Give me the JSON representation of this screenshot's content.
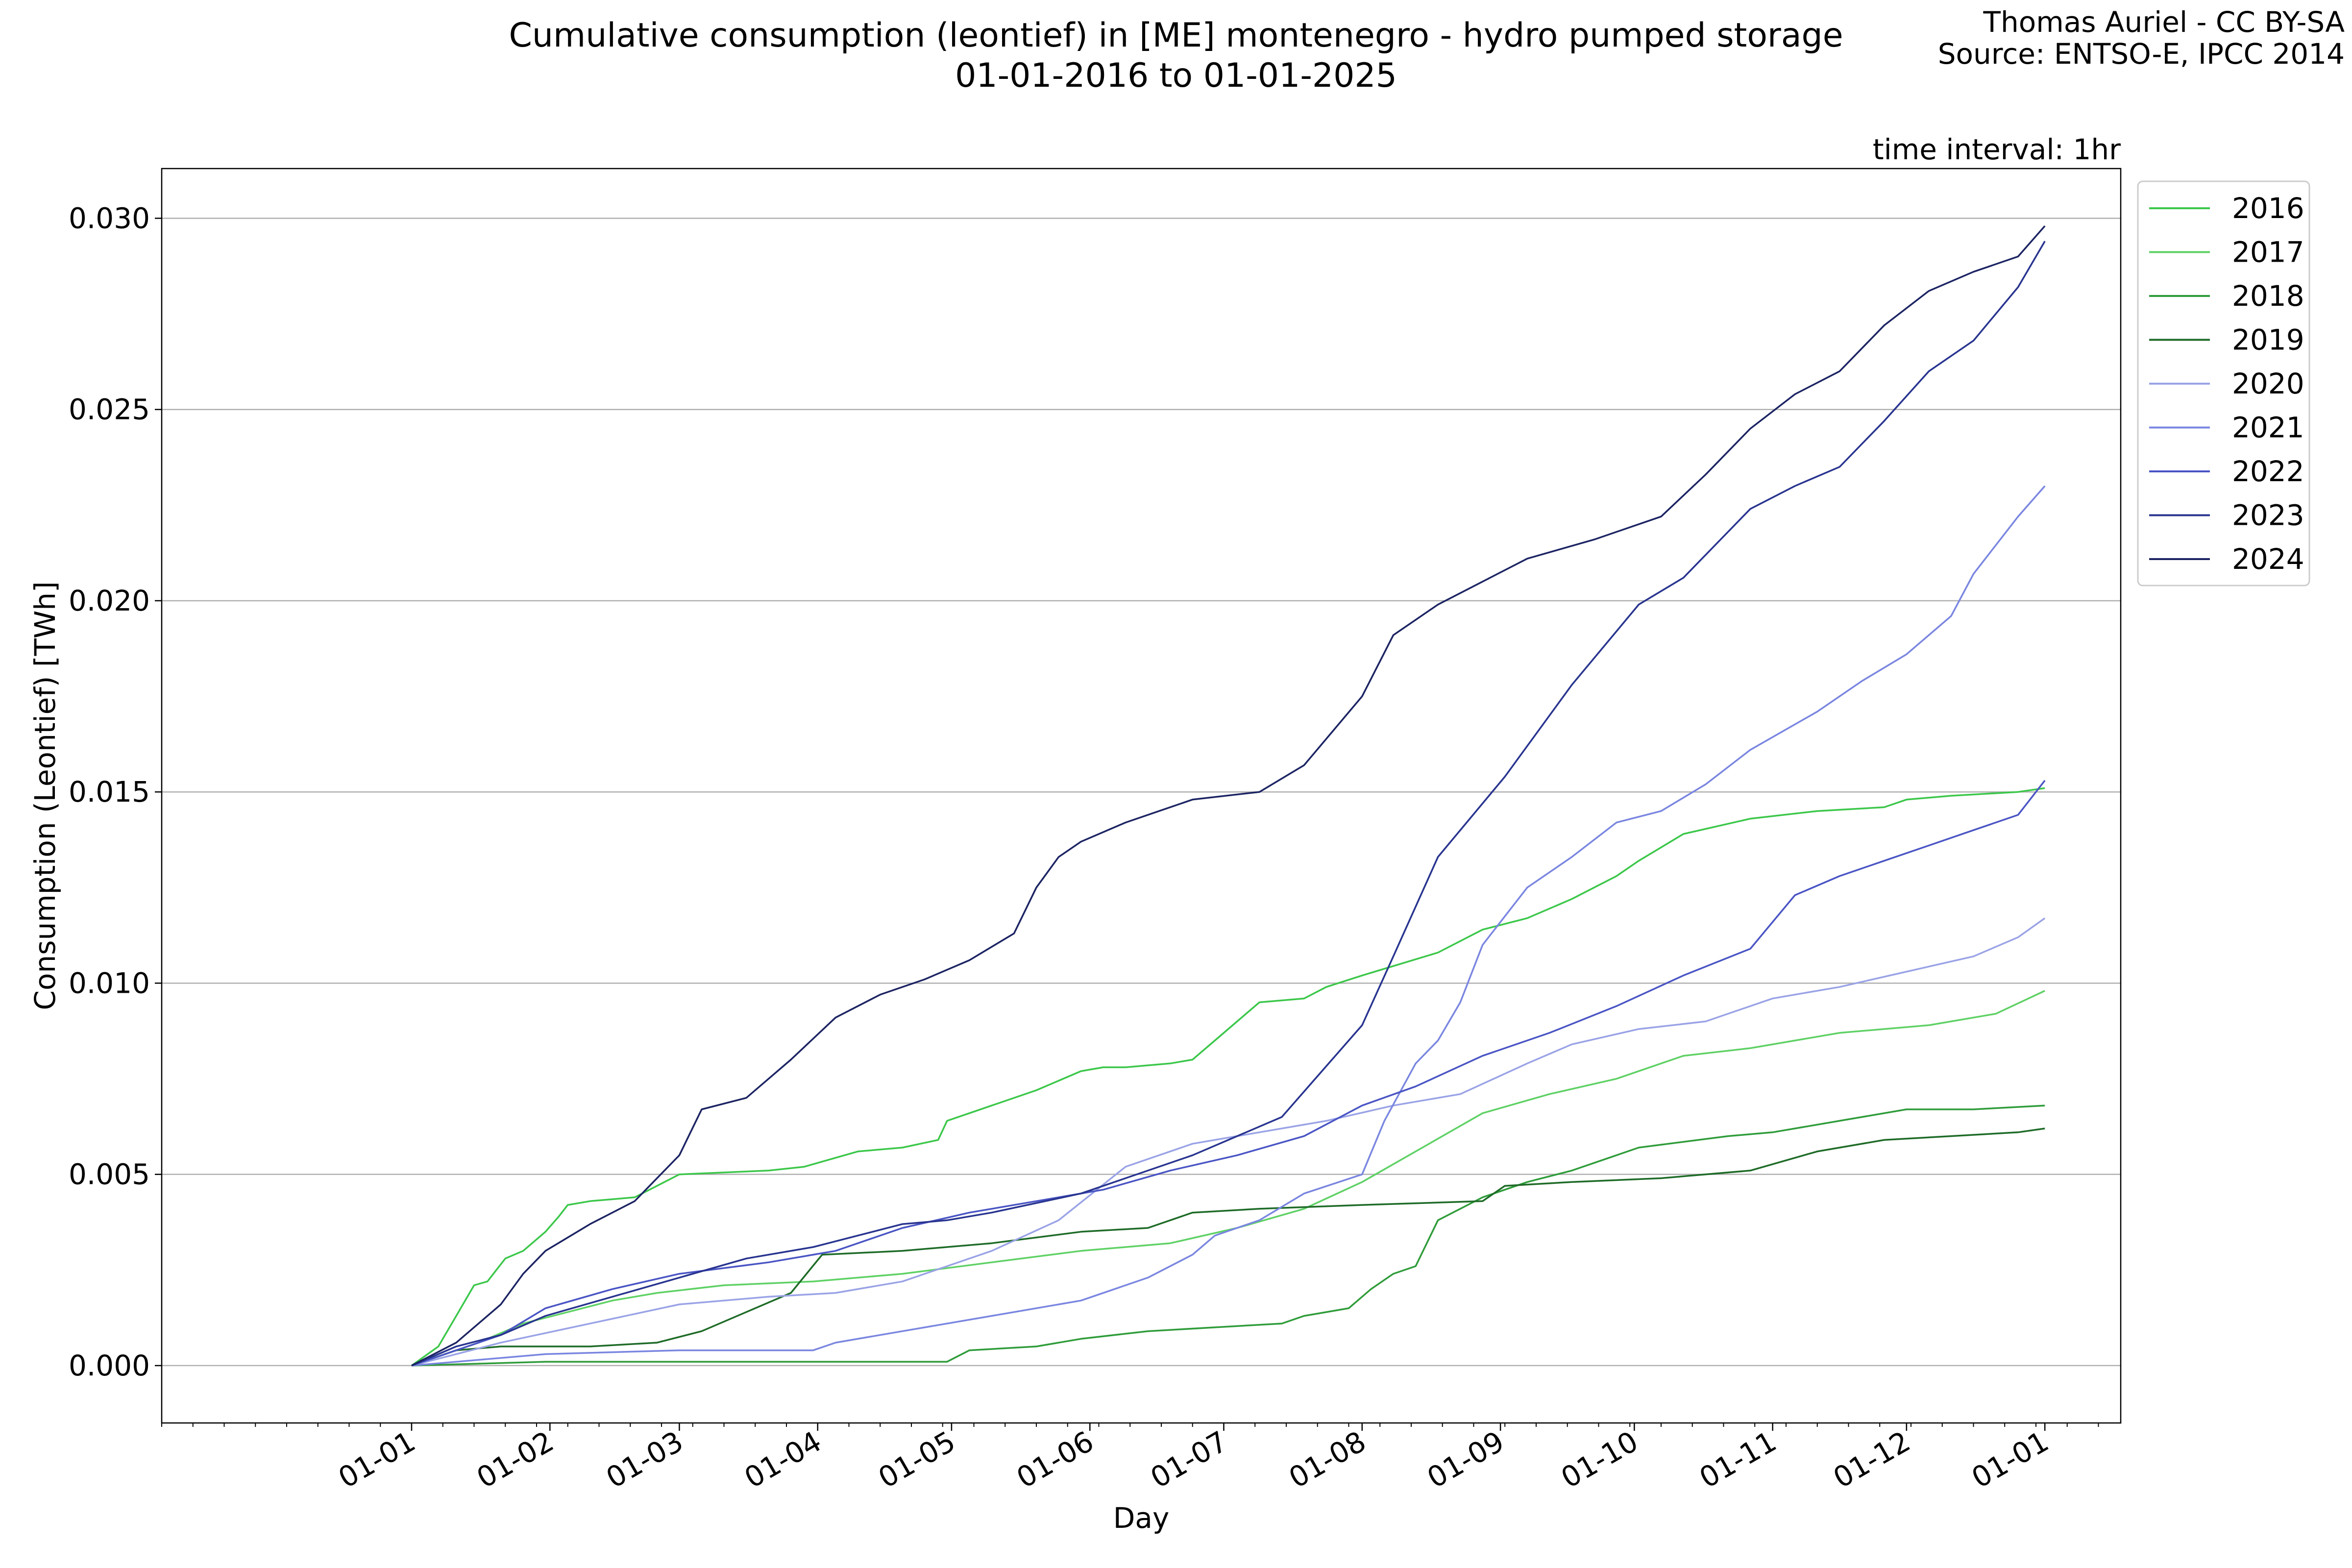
{
  "chart_data": {
    "type": "line",
    "title": "Cumulative consumption (leontief) in [ME] montenegro - hydro pumped storage",
    "subtitle": "01-01-2016 to 01-01-2025",
    "credit": "Thomas Auriel - CC BY-SA",
    "source": "Source: ENTSO-E, IPCC 2014",
    "annotation": "time interval: 1hr",
    "xlabel": "Day",
    "ylabel": "Consumption (Leontief) [TWh]",
    "ylim": [
      -0.0015,
      0.0313
    ],
    "xlim": [
      -56,
      383
    ],
    "x_unit": "day of year",
    "grid": "horizontal",
    "legend_position": "outside-right-top",
    "x_ticks": [
      {
        "label": "01-01",
        "x": 0
      },
      {
        "label": "01-02",
        "x": 31
      },
      {
        "label": "01-03",
        "x": 60
      },
      {
        "label": "01-04",
        "x": 91
      },
      {
        "label": "01-05",
        "x": 121
      },
      {
        "label": "01-06",
        "x": 152
      },
      {
        "label": "01-07",
        "x": 182
      },
      {
        "label": "01-08",
        "x": 213
      },
      {
        "label": "01-09",
        "x": 244
      },
      {
        "label": "01-10",
        "x": 274
      },
      {
        "label": "01-11",
        "x": 305
      },
      {
        "label": "01-12",
        "x": 335
      },
      {
        "label": "01-01",
        "x": 366
      }
    ],
    "y_ticks": [
      {
        "label": "0.000",
        "y": 0.0
      },
      {
        "label": "0.005",
        "y": 0.005
      },
      {
        "label": "0.010",
        "y": 0.01
      },
      {
        "label": "0.015",
        "y": 0.015
      },
      {
        "label": "0.020",
        "y": 0.02
      },
      {
        "label": "0.025",
        "y": 0.025
      },
      {
        "label": "0.030",
        "y": 0.03
      }
    ],
    "series": [
      {
        "name": "2016",
        "color": "#3cc74a",
        "points": [
          [
            0,
            0
          ],
          [
            6,
            0.0005
          ],
          [
            10,
            0.0013
          ],
          [
            14,
            0.0021
          ],
          [
            17,
            0.0022
          ],
          [
            21,
            0.0028
          ],
          [
            25,
            0.003
          ],
          [
            30,
            0.0035
          ],
          [
            33,
            0.0039
          ],
          [
            35,
            0.0042
          ],
          [
            40,
            0.0043
          ],
          [
            50,
            0.0044
          ],
          [
            55,
            0.0047
          ],
          [
            60,
            0.005
          ],
          [
            80,
            0.0051
          ],
          [
            88,
            0.0052
          ],
          [
            100,
            0.0056
          ],
          [
            110,
            0.0057
          ],
          [
            118,
            0.0059
          ],
          [
            120,
            0.0064
          ],
          [
            130,
            0.0068
          ],
          [
            140,
            0.0072
          ],
          [
            150,
            0.0077
          ],
          [
            155,
            0.0078
          ],
          [
            160,
            0.0078
          ],
          [
            170,
            0.0079
          ],
          [
            175,
            0.008
          ],
          [
            180,
            0.0085
          ],
          [
            185,
            0.009
          ],
          [
            190,
            0.0095
          ],
          [
            200,
            0.0096
          ],
          [
            205,
            0.0099
          ],
          [
            213,
            0.0102
          ],
          [
            230,
            0.0108
          ],
          [
            240,
            0.0114
          ],
          [
            250,
            0.0117
          ],
          [
            260,
            0.0122
          ],
          [
            270,
            0.0128
          ],
          [
            275,
            0.0132
          ],
          [
            285,
            0.0139
          ],
          [
            300,
            0.0143
          ],
          [
            315,
            0.0145
          ],
          [
            330,
            0.0146
          ],
          [
            335,
            0.0148
          ],
          [
            345,
            0.0149
          ],
          [
            360,
            0.015
          ],
          [
            366,
            0.0151
          ]
        ]
      },
      {
        "name": "2017",
        "color": "#5fd165",
        "points": [
          [
            0,
            0
          ],
          [
            15,
            0.0006
          ],
          [
            25,
            0.0011
          ],
          [
            35,
            0.0014
          ],
          [
            45,
            0.0017
          ],
          [
            55,
            0.0019
          ],
          [
            70,
            0.0021
          ],
          [
            90,
            0.0022
          ],
          [
            110,
            0.0024
          ],
          [
            130,
            0.0027
          ],
          [
            150,
            0.003
          ],
          [
            170,
            0.0032
          ],
          [
            185,
            0.0036
          ],
          [
            200,
            0.0041
          ],
          [
            213,
            0.0048
          ],
          [
            225,
            0.0056
          ],
          [
            240,
            0.0066
          ],
          [
            255,
            0.0071
          ],
          [
            270,
            0.0075
          ],
          [
            285,
            0.0081
          ],
          [
            300,
            0.0083
          ],
          [
            320,
            0.0087
          ],
          [
            340,
            0.0089
          ],
          [
            355,
            0.0092
          ],
          [
            366,
            0.0098
          ]
        ]
      },
      {
        "name": "2018",
        "color": "#2f9c3a",
        "points": [
          [
            0,
            0
          ],
          [
            30,
            0.0001
          ],
          [
            60,
            0.0001
          ],
          [
            90,
            0.0001
          ],
          [
            120,
            0.0001
          ],
          [
            125,
            0.0004
          ],
          [
            140,
            0.0005
          ],
          [
            150,
            0.0007
          ],
          [
            165,
            0.0009
          ],
          [
            180,
            0.001
          ],
          [
            195,
            0.0011
          ],
          [
            200,
            0.0013
          ],
          [
            210,
            0.0015
          ],
          [
            215,
            0.002
          ],
          [
            220,
            0.0024
          ],
          [
            225,
            0.0026
          ],
          [
            230,
            0.0038
          ],
          [
            240,
            0.0044
          ],
          [
            250,
            0.0048
          ],
          [
            260,
            0.0051
          ],
          [
            275,
            0.0057
          ],
          [
            295,
            0.006
          ],
          [
            305,
            0.0061
          ],
          [
            320,
            0.0064
          ],
          [
            335,
            0.0067
          ],
          [
            350,
            0.0067
          ],
          [
            366,
            0.0068
          ]
        ]
      },
      {
        "name": "2019",
        "color": "#1e6b27",
        "points": [
          [
            0,
            0
          ],
          [
            10,
            0.0004
          ],
          [
            20,
            0.0005
          ],
          [
            40,
            0.0005
          ],
          [
            55,
            0.0006
          ],
          [
            65,
            0.0009
          ],
          [
            75,
            0.0014
          ],
          [
            85,
            0.0019
          ],
          [
            92,
            0.0029
          ],
          [
            110,
            0.003
          ],
          [
            130,
            0.0032
          ],
          [
            150,
            0.0035
          ],
          [
            165,
            0.0036
          ],
          [
            175,
            0.004
          ],
          [
            190,
            0.0041
          ],
          [
            213,
            0.0042
          ],
          [
            240,
            0.0043
          ],
          [
            245,
            0.0047
          ],
          [
            260,
            0.0048
          ],
          [
            280,
            0.0049
          ],
          [
            300,
            0.0051
          ],
          [
            315,
            0.0056
          ],
          [
            330,
            0.0059
          ],
          [
            345,
            0.006
          ],
          [
            360,
            0.0061
          ],
          [
            366,
            0.0062
          ]
        ]
      },
      {
        "name": "2020",
        "color": "#9aa3e6",
        "points": [
          [
            0,
            0
          ],
          [
            20,
            0.0006
          ],
          [
            40,
            0.0011
          ],
          [
            60,
            0.0016
          ],
          [
            80,
            0.0018
          ],
          [
            95,
            0.0019
          ],
          [
            110,
            0.0022
          ],
          [
            130,
            0.003
          ],
          [
            145,
            0.0038
          ],
          [
            160,
            0.0052
          ],
          [
            175,
            0.0058
          ],
          [
            190,
            0.0061
          ],
          [
            205,
            0.0064
          ],
          [
            220,
            0.0068
          ],
          [
            235,
            0.0071
          ],
          [
            250,
            0.0079
          ],
          [
            260,
            0.0084
          ],
          [
            275,
            0.0088
          ],
          [
            290,
            0.009
          ],
          [
            305,
            0.0096
          ],
          [
            320,
            0.0099
          ],
          [
            335,
            0.0103
          ],
          [
            350,
            0.0107
          ],
          [
            360,
            0.0112
          ],
          [
            366,
            0.0117
          ]
        ]
      },
      {
        "name": "2021",
        "color": "#7a86e0",
        "points": [
          [
            0,
            0
          ],
          [
            30,
            0.0003
          ],
          [
            60,
            0.0004
          ],
          [
            90,
            0.0004
          ],
          [
            95,
            0.0006
          ],
          [
            110,
            0.0009
          ],
          [
            130,
            0.0013
          ],
          [
            150,
            0.0017
          ],
          [
            165,
            0.0023
          ],
          [
            175,
            0.0029
          ],
          [
            180,
            0.0034
          ],
          [
            190,
            0.0038
          ],
          [
            200,
            0.0045
          ],
          [
            213,
            0.005
          ],
          [
            218,
            0.0064
          ],
          [
            225,
            0.0079
          ],
          [
            230,
            0.0085
          ],
          [
            235,
            0.0095
          ],
          [
            240,
            0.011
          ],
          [
            250,
            0.0125
          ],
          [
            260,
            0.0133
          ],
          [
            270,
            0.0142
          ],
          [
            280,
            0.0145
          ],
          [
            290,
            0.0152
          ],
          [
            300,
            0.0161
          ],
          [
            315,
            0.0171
          ],
          [
            325,
            0.0179
          ],
          [
            335,
            0.0186
          ],
          [
            345,
            0.0196
          ],
          [
            350,
            0.0207
          ],
          [
            360,
            0.0222
          ],
          [
            366,
            0.023
          ]
        ]
      },
      {
        "name": "2022",
        "color": "#4a55c4",
        "points": [
          [
            0,
            0
          ],
          [
            20,
            0.0008
          ],
          [
            30,
            0.0015
          ],
          [
            45,
            0.002
          ],
          [
            60,
            0.0024
          ],
          [
            80,
            0.0027
          ],
          [
            95,
            0.003
          ],
          [
            110,
            0.0036
          ],
          [
            125,
            0.004
          ],
          [
            140,
            0.0043
          ],
          [
            155,
            0.0046
          ],
          [
            170,
            0.0051
          ],
          [
            185,
            0.0055
          ],
          [
            200,
            0.006
          ],
          [
            213,
            0.0068
          ],
          [
            225,
            0.0073
          ],
          [
            240,
            0.0081
          ],
          [
            255,
            0.0087
          ],
          [
            270,
            0.0094
          ],
          [
            285,
            0.0102
          ],
          [
            300,
            0.0109
          ],
          [
            310,
            0.0123
          ],
          [
            320,
            0.0128
          ],
          [
            330,
            0.0132
          ],
          [
            340,
            0.0136
          ],
          [
            350,
            0.014
          ],
          [
            360,
            0.0144
          ],
          [
            366,
            0.0153
          ]
        ]
      },
      {
        "name": "2023",
        "color": "#28348f",
        "points": [
          [
            0,
            0
          ],
          [
            10,
            0.0005
          ],
          [
            20,
            0.0008
          ],
          [
            30,
            0.0013
          ],
          [
            45,
            0.0018
          ],
          [
            60,
            0.0023
          ],
          [
            75,
            0.0028
          ],
          [
            90,
            0.0031
          ],
          [
            100,
            0.0034
          ],
          [
            110,
            0.0037
          ],
          [
            120,
            0.0038
          ],
          [
            130,
            0.004
          ],
          [
            150,
            0.0045
          ],
          [
            175,
            0.0055
          ],
          [
            195,
            0.0065
          ],
          [
            213,
            0.0089
          ],
          [
            220,
            0.0107
          ],
          [
            230,
            0.0133
          ],
          [
            245,
            0.0154
          ],
          [
            260,
            0.0178
          ],
          [
            275,
            0.0199
          ],
          [
            285,
            0.0206
          ],
          [
            290,
            0.0212
          ],
          [
            300,
            0.0224
          ],
          [
            310,
            0.023
          ],
          [
            320,
            0.0235
          ],
          [
            330,
            0.0247
          ],
          [
            340,
            0.026
          ],
          [
            350,
            0.0268
          ],
          [
            360,
            0.0282
          ],
          [
            366,
            0.0294
          ]
        ]
      },
      {
        "name": "2024",
        "color": "#1c2463",
        "points": [
          [
            0,
            0
          ],
          [
            10,
            0.0006
          ],
          [
            15,
            0.0011
          ],
          [
            20,
            0.0016
          ],
          [
            25,
            0.0024
          ],
          [
            30,
            0.003
          ],
          [
            40,
            0.0037
          ],
          [
            50,
            0.0043
          ],
          [
            60,
            0.0055
          ],
          [
            65,
            0.0067
          ],
          [
            75,
            0.007
          ],
          [
            85,
            0.008
          ],
          [
            95,
            0.0091
          ],
          [
            105,
            0.0097
          ],
          [
            115,
            0.0101
          ],
          [
            125,
            0.0106
          ],
          [
            135,
            0.0113
          ],
          [
            140,
            0.0125
          ],
          [
            145,
            0.0133
          ],
          [
            150,
            0.0137
          ],
          [
            160,
            0.0142
          ],
          [
            175,
            0.0148
          ],
          [
            190,
            0.015
          ],
          [
            200,
            0.0157
          ],
          [
            213,
            0.0175
          ],
          [
            220,
            0.0191
          ],
          [
            230,
            0.0199
          ],
          [
            240,
            0.0205
          ],
          [
            250,
            0.0211
          ],
          [
            265,
            0.0216
          ],
          [
            280,
            0.0222
          ],
          [
            290,
            0.0233
          ],
          [
            300,
            0.0245
          ],
          [
            310,
            0.0254
          ],
          [
            320,
            0.026
          ],
          [
            330,
            0.0272
          ],
          [
            340,
            0.0281
          ],
          [
            350,
            0.0286
          ],
          [
            360,
            0.029
          ],
          [
            366,
            0.0298
          ]
        ]
      }
    ]
  }
}
